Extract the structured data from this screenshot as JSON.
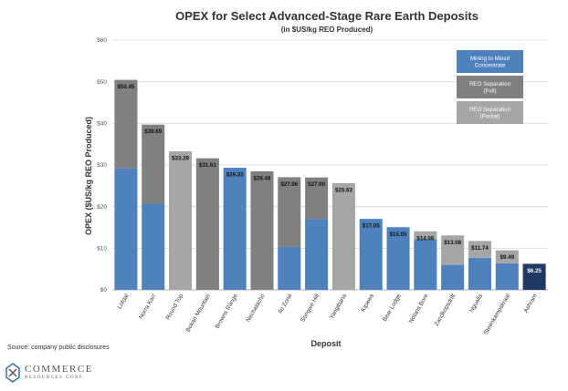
{
  "chart_data": {
    "type": "bar",
    "stacked": true,
    "title": "OPEX for Select Advanced-Stage Rare Earth Deposits",
    "subtitle": "(in $US/kg REO Produced)",
    "xlabel": "Deposit",
    "ylabel": "OPEX ($US/kg REO Produced)",
    "ylim": [
      0,
      60
    ],
    "yticks": [
      "$0",
      "$10",
      "$20",
      "$30",
      "$40",
      "$50",
      "$60"
    ],
    "yticks_values": [
      0,
      10,
      20,
      30,
      40,
      50,
      60
    ],
    "categories": [
      "Lofdal",
      "Norra Karr",
      "Round Top",
      "Bokan Mountain",
      "Browns Range",
      "Nechalacho",
      "Ilo Zone",
      "Songwe Hill",
      "Yangibana",
      "Kipawa",
      "Bear Lodge",
      "Nolans Bore",
      "Zandkopsdrift",
      "Ngualla",
      "Steenkampskraal",
      "Ashram"
    ],
    "series": [
      {
        "name": "Mining to Mixed Concentrate",
        "color": "#4f81bd",
        "values": [
          29.2,
          20.7,
          0,
          0,
          29.33,
          0,
          10.3,
          17.0,
          0,
          17.05,
          15.05,
          12.2,
          6.0,
          7.7,
          6.4,
          0
        ]
      },
      {
        "name": "REO Separation (Full)",
        "color": "#808080",
        "values": [
          21.25,
          18.99,
          0,
          31.61,
          0,
          28.48,
          16.76,
          10.0,
          0,
          0,
          0,
          0,
          0,
          0,
          0,
          0
        ]
      },
      {
        "name": "REO Separation (Partial)",
        "color": "#a6a6a6",
        "values": [
          0,
          0,
          33.29,
          0,
          0,
          0,
          0,
          0,
          25.63,
          0,
          0,
          1.86,
          7.08,
          4.04,
          3.09,
          0
        ]
      },
      {
        "name": "Ashram",
        "color": "#1f3864",
        "in_legend": false,
        "values": [
          0,
          0,
          0,
          0,
          0,
          0,
          0,
          0,
          0,
          0,
          0,
          0,
          0,
          0,
          0,
          6.25
        ]
      }
    ],
    "totals": [
      50.45,
      39.69,
      33.29,
      31.61,
      29.33,
      28.48,
      27.06,
      27.0,
      25.63,
      17.05,
      15.05,
      14.06,
      13.08,
      11.74,
      9.49,
      6.25
    ],
    "data_labels": [
      "$50.45",
      "$39.69",
      "$33.29",
      "$31.61",
      "$29.33",
      "$28.48",
      "$27.06",
      "$27.00",
      "$25.63",
      "$17.05",
      "$15.05",
      "$14.06",
      "$13.08",
      "$11.74",
      "$9.49",
      "$6.25"
    ],
    "legend": [
      {
        "label": "Mining to Mixed Concentrate",
        "color": "#4f81bd"
      },
      {
        "label": "REO Separation (Full)",
        "color": "#808080"
      },
      {
        "label": "REO Separation (Partial)",
        "color": "#a6a6a6"
      }
    ],
    "legend_position": "top-right",
    "grid": true
  },
  "footer": {
    "source": "Source: company public disclosures",
    "logo_name": "COMMERCE",
    "logo_sub": "RESOURCES CORP."
  }
}
